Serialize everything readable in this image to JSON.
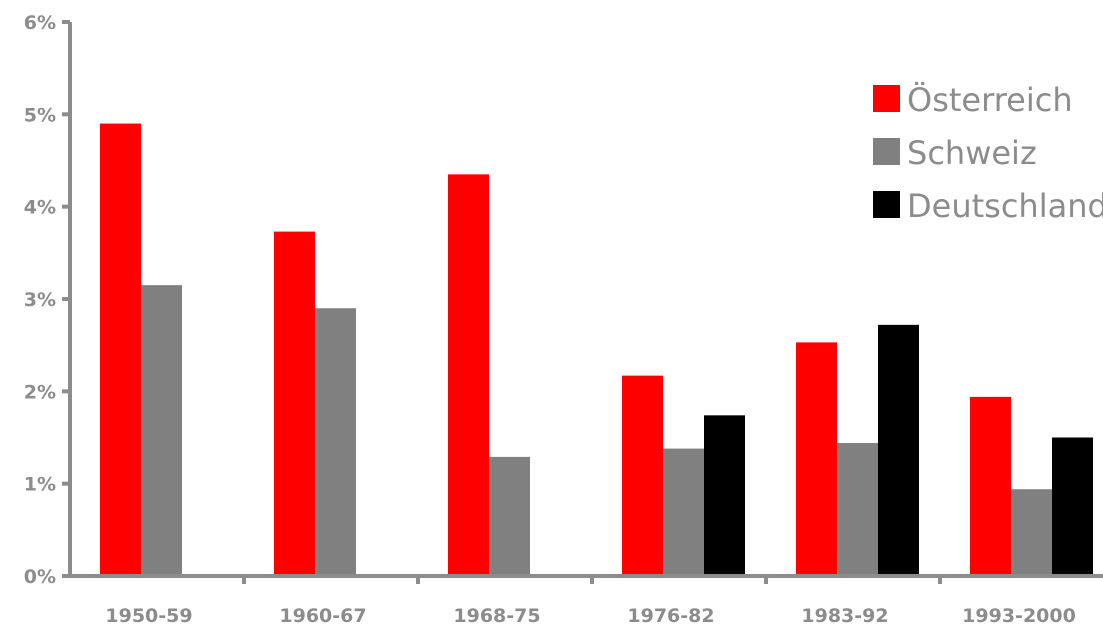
{
  "chart_data": {
    "type": "bar",
    "categories": [
      "1950-59",
      "1960-67",
      "1968-75",
      "1976-82",
      "1983-92",
      "1993-2000"
    ],
    "series": [
      {
        "name": "Österreich",
        "color": "#ff0000",
        "values": [
          4.9,
          3.73,
          4.35,
          2.17,
          2.53,
          1.94
        ]
      },
      {
        "name": "Schweiz",
        "color": "#808080",
        "values": [
          3.15,
          2.9,
          1.29,
          1.38,
          1.44,
          0.94
        ]
      },
      {
        "name": "Deutschland",
        "color": "#000000",
        "values": [
          null,
          null,
          null,
          1.74,
          2.72,
          1.5
        ]
      }
    ],
    "y_ticks": [
      "0%",
      "1%",
      "2%",
      "3%",
      "4%",
      "5%",
      "6%"
    ],
    "ylim": [
      0,
      6
    ],
    "unit": "%",
    "grid": false,
    "legend_position": "top-right"
  }
}
